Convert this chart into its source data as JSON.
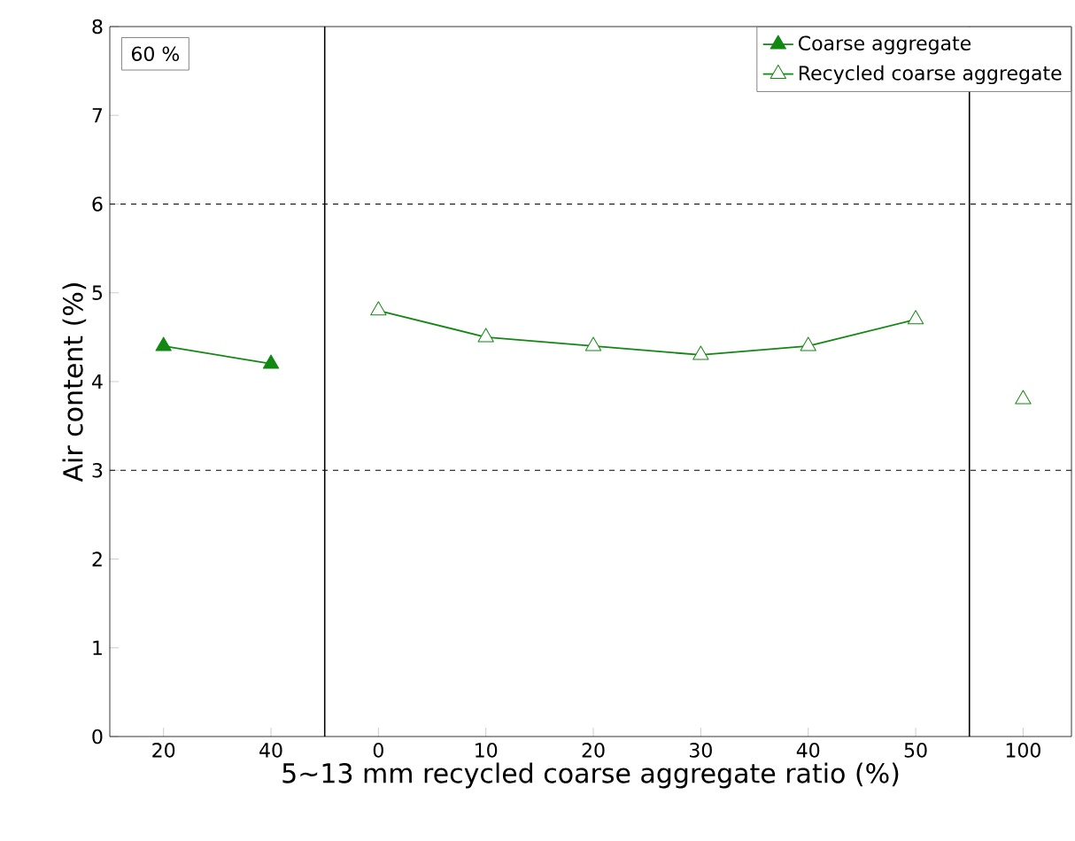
{
  "chart_data": {
    "type": "line",
    "xlabel": "5~13 mm recycled coarse aggregate ratio (%)",
    "ylabel": "Air content (%)",
    "categories": [
      "20",
      "40",
      "0",
      "10",
      "20",
      "30",
      "40",
      "50",
      "100"
    ],
    "ylim": [
      0,
      8
    ],
    "yticks": [
      0,
      1,
      2,
      3,
      4,
      5,
      6,
      7,
      8
    ],
    "series": [
      {
        "name": "Coarse aggregate",
        "color": "#118811",
        "marker": "triangle",
        "values": [
          4.4,
          4.2,
          null,
          null,
          null,
          null,
          null,
          null,
          null
        ]
      },
      {
        "name": "Recycled coarse aggregate",
        "color": "#118811",
        "marker": "triangle",
        "values": [
          null,
          null,
          4.8,
          4.5,
          4.4,
          4.3,
          4.4,
          4.7,
          null
        ]
      },
      {
        "type": "scatter",
        "color": "#118811",
        "marker": "triangle",
        "values": [
          null,
          null,
          null,
          null,
          null,
          null,
          null,
          null,
          3.8
        ]
      }
    ],
    "ref_lines": [
      {
        "axis": "y",
        "value": 3,
        "line_style": "dashed",
        "color": "#000000"
      },
      {
        "axis": "y",
        "value": 6,
        "line_style": "dashed",
        "color": "#000000"
      }
    ],
    "annotations": [
      "60 %"
    ],
    "legend": "top right"
  }
}
